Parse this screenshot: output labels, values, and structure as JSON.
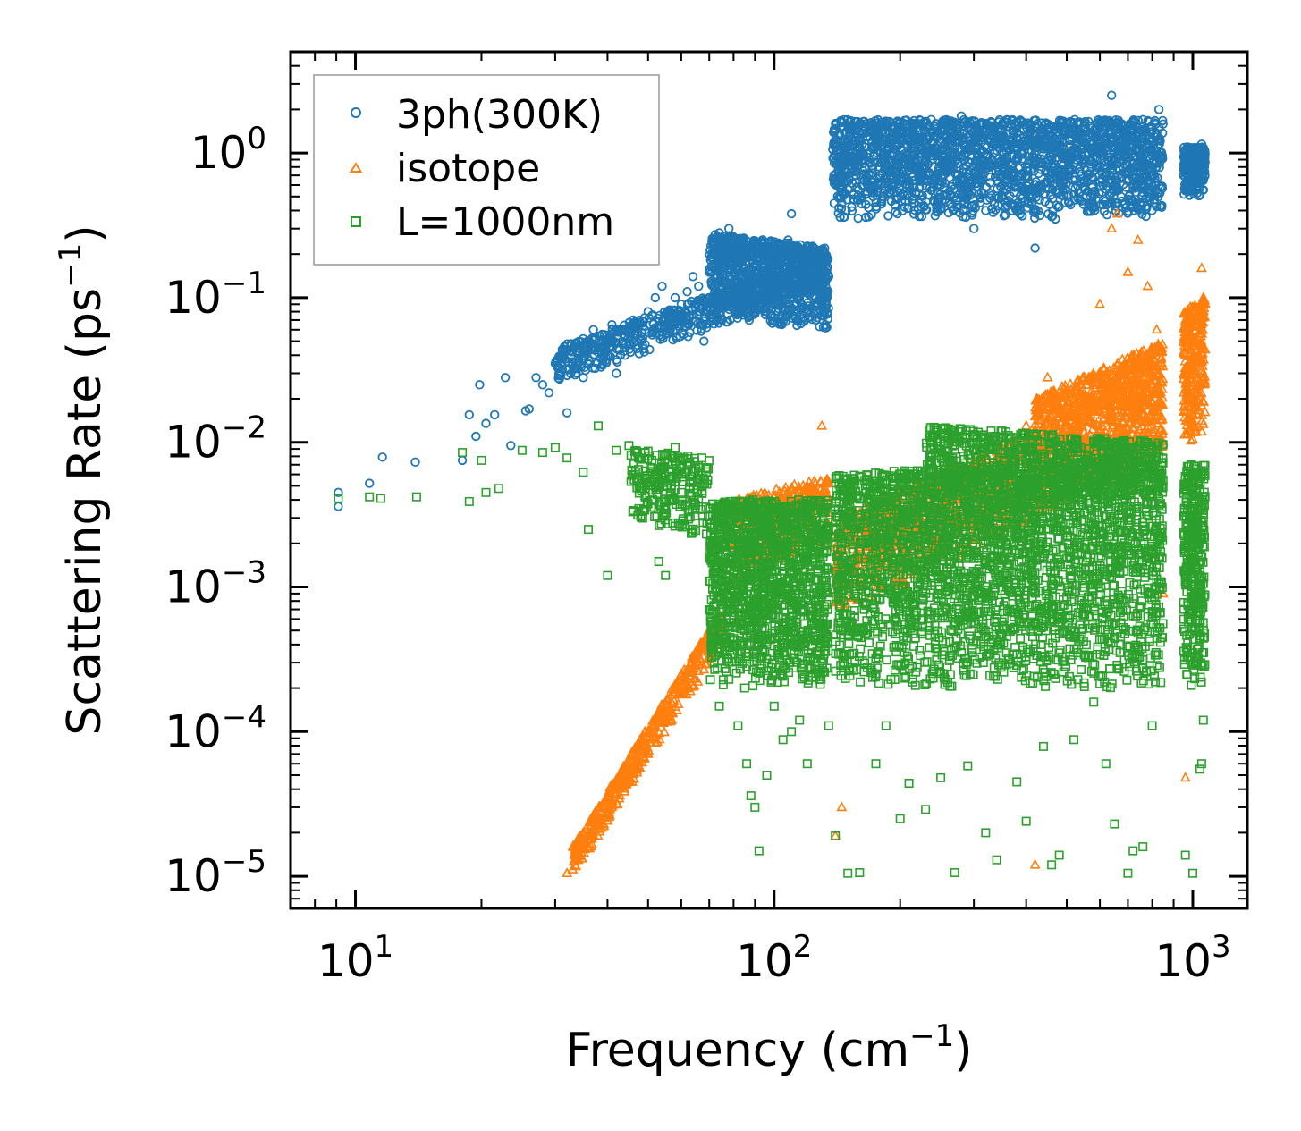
{
  "chart_data": {
    "type": "scatter",
    "xscale": "log",
    "yscale": "log",
    "xlim": [
      7,
      1350
    ],
    "ylim": [
      6e-06,
      5
    ],
    "xlabel": "Frequency (cm",
    "xlabel_sup": "−1",
    "xlabel_end": ")",
    "ylabel": "Scattering Rate (ps",
    "ylabel_sup": "−1",
    "ylabel_end": ")",
    "x_ticks": [
      {
        "value": 10,
        "base": "10",
        "exp": "1"
      },
      {
        "value": 100,
        "base": "10",
        "exp": "2"
      },
      {
        "value": 1000,
        "base": "10",
        "exp": "3"
      }
    ],
    "y_ticks": [
      {
        "value": 1,
        "base": "10",
        "exp": "0"
      },
      {
        "value": 0.1,
        "base": "10",
        "exp": "−1"
      },
      {
        "value": 0.01,
        "base": "10",
        "exp": "−2"
      },
      {
        "value": 0.001,
        "base": "10",
        "exp": "−3"
      },
      {
        "value": 0.0001,
        "base": "10",
        "exp": "−4"
      },
      {
        "value": 1e-05,
        "base": "10",
        "exp": "−5"
      }
    ],
    "legend_position": "top-left",
    "series": [
      {
        "name": "3ph(300K)",
        "marker": "circle",
        "color": "#1f77b4",
        "points": [
          [
            9.1,
            0.0036
          ],
          [
            9.1,
            0.0045
          ],
          [
            10.8,
            0.0052
          ],
          [
            11.6,
            0.0079
          ],
          [
            13.9,
            0.0073
          ],
          [
            18.0,
            0.0075
          ],
          [
            18.7,
            0.0155
          ],
          [
            19.8,
            0.025
          ],
          [
            19.4,
            0.011
          ],
          [
            20.5,
            0.0135
          ],
          [
            21.5,
            0.0155
          ],
          [
            22.8,
            0.028
          ],
          [
            23.5,
            0.0095
          ],
          [
            25.5,
            0.0165
          ],
          [
            26.0,
            0.017
          ],
          [
            27.0,
            0.028
          ],
          [
            28.0,
            0.025
          ],
          [
            29.0,
            0.022
          ],
          [
            30.0,
            0.035
          ],
          [
            31.0,
            0.04
          ],
          [
            32.0,
            0.016
          ],
          [
            33.0,
            0.035
          ],
          [
            35.0,
            0.028
          ],
          [
            36.0,
            0.05
          ],
          [
            37.0,
            0.06
          ],
          [
            38.5,
            0.045
          ],
          [
            40.0,
            0.055
          ],
          [
            41.0,
            0.065
          ],
          [
            42.0,
            0.03
          ],
          [
            44.0,
            0.04
          ],
          [
            46.0,
            0.07
          ],
          [
            48.0,
            0.05
          ],
          [
            50.0,
            0.08
          ],
          [
            52.0,
            0.1
          ],
          [
            54.0,
            0.12
          ],
          [
            56.0,
            0.07
          ],
          [
            58.0,
            0.1
          ],
          [
            60.0,
            0.09
          ],
          [
            62.0,
            0.11
          ],
          [
            64.0,
            0.14
          ],
          [
            66.0,
            0.12
          ],
          [
            68.0,
            0.05
          ],
          [
            70.0,
            0.15
          ],
          [
            72.0,
            0.2
          ],
          [
            74.0,
            0.28
          ],
          [
            76.0,
            0.25
          ],
          [
            78.0,
            0.3
          ],
          [
            80.0,
            0.22
          ],
          [
            84.0,
            0.18
          ],
          [
            88.0,
            0.12
          ],
          [
            92.0,
            0.15
          ],
          [
            96.0,
            0.08
          ],
          [
            100.0,
            0.2
          ],
          [
            104.0,
            0.14
          ],
          [
            108.0,
            0.25
          ],
          [
            110.0,
            0.38
          ],
          [
            115.0,
            0.1
          ],
          [
            120.0,
            0.13
          ],
          [
            125.0,
            0.09
          ],
          [
            130.0,
            0.2
          ],
          [
            135.0,
            0.14
          ],
          [
            140.0,
            0.65
          ],
          [
            145.0,
            0.8
          ],
          [
            150.0,
            0.9
          ],
          [
            160.0,
            1.1
          ],
          [
            170.0,
            0.85
          ],
          [
            180.0,
            1.0
          ],
          [
            190.0,
            0.7
          ],
          [
            200.0,
            1.5
          ],
          [
            210.0,
            1.2
          ],
          [
            220.0,
            0.8
          ],
          [
            230.0,
            0.9
          ],
          [
            240.0,
            1.3
          ],
          [
            250.0,
            0.6
          ],
          [
            260.0,
            1.5
          ],
          [
            270.0,
            1.0
          ],
          [
            280.0,
            1.8
          ],
          [
            290.0,
            0.5
          ],
          [
            300.0,
            0.3
          ],
          [
            310.0,
            0.9
          ],
          [
            320.0,
            0.4
          ],
          [
            330.0,
            1.2
          ],
          [
            350.0,
            0.7
          ],
          [
            380.0,
            1.1
          ],
          [
            400.0,
            0.6
          ],
          [
            420.0,
            0.22
          ],
          [
            440.0,
            0.9
          ],
          [
            470.0,
            0.35
          ],
          [
            500.0,
            0.7
          ],
          [
            530.0,
            1.6
          ],
          [
            560.0,
            1.1
          ],
          [
            600.0,
            0.8
          ],
          [
            640.0,
            2.5
          ],
          [
            680.0,
            1.3
          ],
          [
            720.0,
            0.6
          ],
          [
            760.0,
            1.7
          ],
          [
            800.0,
            1.2
          ],
          [
            830.0,
            2.0
          ],
          [
            950.0,
            0.7
          ],
          [
            1000.0,
            1.0
          ],
          [
            1050.0,
            1.15
          ]
        ],
        "bands": [
          {
            "x": [
              30,
              135
            ],
            "y0": [
              0.025,
              0.12
            ],
            "y1": [
              0.045,
              0.2
            ],
            "count": 700
          },
          {
            "x": [
              70,
              135
            ],
            "y0": [
              0.07,
              0.06
            ],
            "y1": [
              0.28,
              0.22
            ],
            "count": 900
          },
          {
            "x": [
              138,
              850
            ],
            "y0": [
              0.35,
              0.35
            ],
            "y1": [
              1.7,
              1.7
            ],
            "count": 2200
          },
          {
            "x": [
              950,
              1070
            ],
            "y0": [
              0.5,
              0.5
            ],
            "y1": [
              1.1,
              1.1
            ],
            "count": 250
          }
        ]
      },
      {
        "name": "isotope",
        "marker": "triangle",
        "color": "#ff7f0e",
        "points": [
          [
            32,
            1.05e-05
          ],
          [
            34,
            1.3e-05
          ],
          [
            36,
            1.8e-05
          ],
          [
            40,
            2.8e-05
          ],
          [
            44,
            4.5e-05
          ],
          [
            50,
            7e-05
          ],
          [
            56,
            0.00013
          ],
          [
            62,
            0.00023
          ],
          [
            68,
            0.00042
          ],
          [
            74,
            0.0009
          ],
          [
            80,
            0.0015
          ],
          [
            90,
            0.0025
          ],
          [
            100,
            0.0032
          ],
          [
            110,
            0.004
          ],
          [
            120,
            0.0035
          ],
          [
            130,
            0.013
          ],
          [
            140,
            0.0009
          ],
          [
            145,
            3e-05
          ],
          [
            140,
            1.9e-05
          ],
          [
            200,
            0.003
          ],
          [
            300,
            0.007
          ],
          [
            400,
            0.013
          ],
          [
            420,
            1.2e-05
          ],
          [
            450,
            0.028
          ],
          [
            500,
            0.015
          ],
          [
            550,
            0.02
          ],
          [
            600,
            0.09
          ],
          [
            640,
            0.3
          ],
          [
            660,
            0.38
          ],
          [
            700,
            0.15
          ],
          [
            740,
            0.25
          ],
          [
            780,
            0.12
          ],
          [
            820,
            0.06
          ],
          [
            960,
            4.8e-05
          ],
          [
            1000,
            0.04
          ],
          [
            1050,
            0.16
          ],
          [
            1060,
            0.1
          ],
          [
            850,
            0.0009
          ]
        ],
        "bands": [
          {
            "x": [
              33,
              75
            ],
            "y0": [
              1e-05,
              0.0004
            ],
            "y1": [
              1.6e-05,
              0.0007
            ],
            "count": 500
          },
          {
            "x": [
              80,
              135
            ],
            "y0": [
              0.001,
              0.002
            ],
            "y1": [
              0.004,
              0.006
            ],
            "count": 400
          },
          {
            "x": [
              140,
              420
            ],
            "y0": [
              0.0006,
              0.003
            ],
            "y1": [
              0.003,
              0.012
            ],
            "count": 800
          },
          {
            "x": [
              420,
              850
            ],
            "y0": [
              0.003,
              0.008
            ],
            "y1": [
              0.02,
              0.05
            ],
            "count": 1100
          },
          {
            "x": [
              950,
              1070
            ],
            "y0": [
              0.01,
              0.01
            ],
            "y1": [
              0.08,
              0.1
            ],
            "count": 300
          }
        ]
      },
      {
        "name": "L=1000nm",
        "marker": "square",
        "color": "#2ca02c",
        "points": [
          [
            9.1,
            0.0041
          ],
          [
            10.8,
            0.0042
          ],
          [
            11.5,
            0.0041
          ],
          [
            14,
            0.0042
          ],
          [
            18,
            0.0085
          ],
          [
            18.7,
            0.0039
          ],
          [
            20,
            0.0075
          ],
          [
            20.5,
            0.0045
          ],
          [
            22,
            0.0048
          ],
          [
            25,
            0.0088
          ],
          [
            28,
            0.0085
          ],
          [
            30,
            0.0092
          ],
          [
            32,
            0.0078
          ],
          [
            35,
            0.0062
          ],
          [
            36,
            0.0025
          ],
          [
            38,
            0.013
          ],
          [
            40,
            0.0012
          ],
          [
            42,
            0.0088
          ],
          [
            45,
            0.0095
          ],
          [
            48,
            0.0031
          ],
          [
            50,
            0.0087
          ],
          [
            53,
            0.0015
          ],
          [
            55,
            0.0012
          ],
          [
            58,
            0.0092
          ],
          [
            60,
            0.0045
          ],
          [
            64,
            0.0024
          ],
          [
            70,
            0.0011
          ],
          [
            74,
            0.00015
          ],
          [
            78,
            0.00023
          ],
          [
            82,
            0.00011
          ],
          [
            86,
            6e-05
          ],
          [
            88,
            3.6e-05
          ],
          [
            90,
            3e-05
          ],
          [
            92,
            1.5e-05
          ],
          [
            96,
            5e-05
          ],
          [
            100,
            0.00015
          ],
          [
            105,
            8.8e-05
          ],
          [
            110,
            0.0001
          ],
          [
            115,
            0.00012
          ],
          [
            120,
            6e-05
          ],
          [
            135,
            0.00011
          ],
          [
            140,
            1.9e-05
          ],
          [
            150,
            1.05e-05
          ],
          [
            160,
            1.06e-05
          ],
          [
            175,
            6e-05
          ],
          [
            185,
            0.00011
          ],
          [
            200,
            2.5e-05
          ],
          [
            210,
            4.4e-05
          ],
          [
            230,
            2.9e-05
          ],
          [
            250,
            4.8e-05
          ],
          [
            270,
            1.06e-05
          ],
          [
            290,
            5.8e-05
          ],
          [
            320,
            2e-05
          ],
          [
            340,
            1.3e-05
          ],
          [
            380,
            4.5e-05
          ],
          [
            400,
            2.4e-05
          ],
          [
            440,
            7.9e-05
          ],
          [
            460,
            1.2e-05
          ],
          [
            480,
            1.4e-05
          ],
          [
            520,
            8.8e-05
          ],
          [
            580,
            0.00016
          ],
          [
            620,
            6e-05
          ],
          [
            650,
            2.3e-05
          ],
          [
            700,
            1.05e-05
          ],
          [
            720,
            1.5e-05
          ],
          [
            760,
            1.6e-05
          ],
          [
            800,
            0.00011
          ],
          [
            960,
            1.4e-05
          ],
          [
            1000,
            1.05e-05
          ],
          [
            1040,
            5.5e-05
          ],
          [
            1060,
            0.00012
          ],
          [
            1050,
            6e-05
          ]
        ],
        "bands": [
          {
            "x": [
              45,
              70
            ],
            "y0": [
              0.003,
              0.002
            ],
            "y1": [
              0.009,
              0.008
            ],
            "count": 250
          },
          {
            "x": [
              70,
              135
            ],
            "y0": [
              0.0002,
              0.0002
            ],
            "y1": [
              0.004,
              0.004
            ],
            "count": 1400
          },
          {
            "x": [
              140,
              850
            ],
            "y0": [
              0.0002,
              0.0002
            ],
            "y1": [
              0.006,
              0.008
            ],
            "count": 3000
          },
          {
            "x": [
              230,
              850
            ],
            "y0": [
              0.004,
              0.004
            ],
            "y1": [
              0.013,
              0.01
            ],
            "count": 700
          },
          {
            "x": [
              950,
              1070
            ],
            "y0": [
              0.0002,
              0.0002
            ],
            "y1": [
              0.007,
              0.007
            ],
            "count": 350
          }
        ]
      }
    ]
  }
}
